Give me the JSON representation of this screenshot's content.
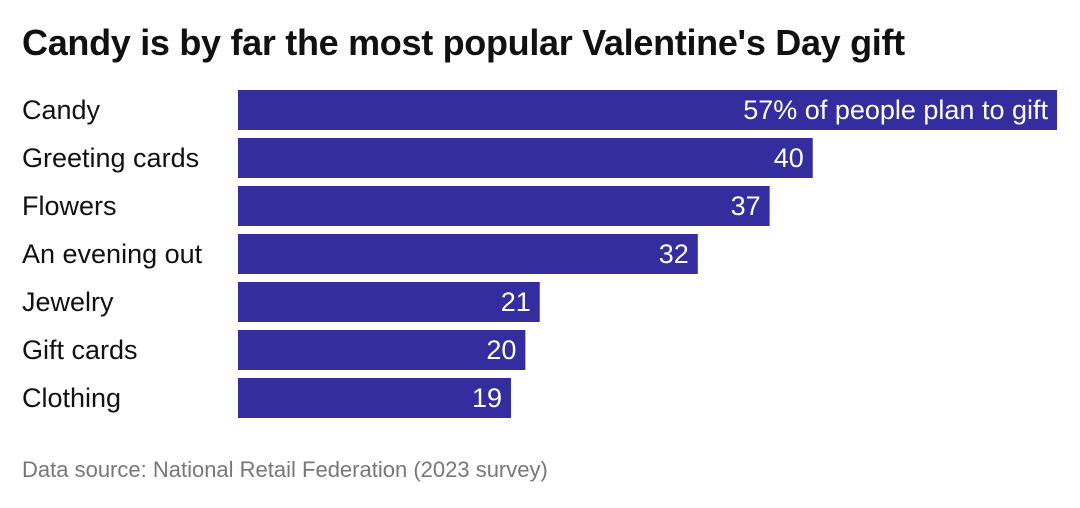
{
  "chart_data": {
    "type": "bar",
    "orientation": "horizontal",
    "title": "Candy is by far the most popular Valentine's Day gift",
    "categories": [
      "Candy",
      "Greeting cards",
      "Flowers",
      "An evening out",
      "Jewelry",
      "Gift cards",
      "Clothing"
    ],
    "values": [
      57,
      40,
      37,
      32,
      21,
      20,
      19
    ],
    "data_labels": [
      "57% of people plan to gift",
      "40",
      "37",
      "32",
      "21",
      "20",
      "19"
    ],
    "unit": "%",
    "xlim": [
      0,
      57
    ],
    "grid": false,
    "bar_color": "#332da0",
    "source": "Data source: National Retail Federation (2023 survey)"
  }
}
